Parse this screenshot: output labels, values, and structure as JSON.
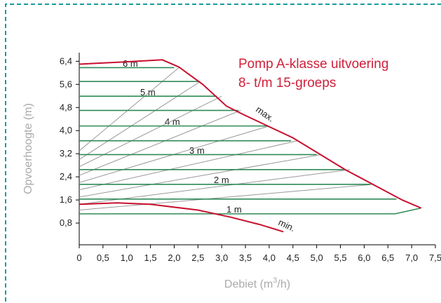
{
  "chart_data": {
    "type": "line",
    "title": [
      "Pomp A-klasse uitvoering",
      "8- t/m 15-groeps"
    ],
    "x_label": [
      "Debiet (m",
      "3",
      "/h)"
    ],
    "y_label": "Opvoerhoogte (m)",
    "xlim": [
      0,
      7.5
    ],
    "ylim": [
      0,
      6.7
    ],
    "xticks": [
      0,
      {
        "value": 0.5,
        "label": "0,5"
      },
      {
        "value": 1,
        "label": "1,0"
      },
      {
        "value": 1.5,
        "label": "1,5"
      },
      {
        "value": 2,
        "label": "2,0"
      },
      {
        "value": 2.5,
        "label": "2,5"
      },
      {
        "value": 3,
        "label": "3,0"
      },
      {
        "value": 3.5,
        "label": "3,5"
      },
      {
        "value": 4,
        "label": "4,0"
      },
      {
        "value": 4.5,
        "label": "4,5"
      },
      {
        "value": 5,
        "label": "5,0"
      },
      {
        "value": 5.5,
        "label": "5,5"
      },
      {
        "value": 6,
        "label": "6,0"
      },
      {
        "value": 6.5,
        "label": "6,5"
      },
      {
        "value": 7,
        "label": "7,0"
      },
      {
        "value": 7.5,
        "label": "7,5"
      }
    ],
    "yticks": [
      {
        "value": 0.8,
        "label": "0,8"
      },
      {
        "value": 1.6,
        "label": "1,6"
      },
      {
        "value": 2.4,
        "label": "2,4"
      },
      {
        "value": 3.2,
        "label": "3,2"
      },
      {
        "value": 4,
        "label": "4,0"
      },
      {
        "value": 4.8,
        "label": "4,8"
      },
      {
        "value": 5.6,
        "label": "5,6"
      },
      {
        "value": 6.4,
        "label": "6,4"
      }
    ],
    "curves": [
      {
        "name": "max.",
        "color": "#c8102e",
        "x": [
          0,
          1.0,
          1.75,
          2.1,
          2.6,
          3.1,
          3.4,
          4.5,
          5.6,
          6.8,
          7.2
        ],
        "values": [
          6.3,
          6.38,
          6.45,
          6.2,
          5.6,
          4.85,
          4.6,
          3.75,
          2.65,
          1.6,
          1.32
        ]
      },
      {
        "name": "min.",
        "color": "#c8102e",
        "x": [
          0,
          0.8,
          1.5,
          2.5,
          3.2,
          3.8,
          4.3
        ],
        "values": [
          1.45,
          1.5,
          1.45,
          1.25,
          1.0,
          0.75,
          0.5
        ]
      }
    ],
    "speed_lines": {
      "color": "#999999",
      "lines": [
        {
          "x": [
            0,
            2.1
          ],
          "values": [
            3.3,
            6.18
          ]
        },
        {
          "x": [
            0,
            2.55
          ],
          "values": [
            3.0,
            5.7
          ]
        },
        {
          "x": [
            0,
            3.0
          ],
          "values": [
            2.75,
            5.19
          ]
        },
        {
          "x": [
            0,
            3.4
          ],
          "values": [
            2.45,
            4.7
          ]
        },
        {
          "x": [
            0,
            4.0
          ],
          "values": [
            2.2,
            4.16
          ]
        },
        {
          "x": [
            0,
            4.6
          ],
          "values": [
            1.95,
            3.65
          ]
        },
        {
          "x": [
            0,
            5.1
          ],
          "values": [
            1.7,
            3.17
          ]
        },
        {
          "x": [
            0,
            5.7
          ],
          "values": [
            1.45,
            2.65
          ]
        },
        {
          "x": [
            0,
            6.2
          ],
          "values": [
            1.25,
            2.14
          ]
        }
      ]
    },
    "head_lines": {
      "color": "#2e8b57",
      "lines": [
        {
          "x": [
            0,
            2.0
          ],
          "values": [
            6.18,
            6.18
          ]
        },
        {
          "x": [
            0,
            2.54
          ],
          "values": [
            5.7,
            5.7
          ]
        },
        {
          "x": [
            0,
            2.9
          ],
          "values": [
            5.19,
            5.19
          ]
        },
        {
          "x": [
            0,
            3.35
          ],
          "values": [
            4.7,
            4.7
          ]
        },
        {
          "x": [
            0,
            3.97
          ],
          "values": [
            4.16,
            4.16
          ]
        },
        {
          "x": [
            0,
            4.46
          ],
          "values": [
            3.65,
            3.65
          ]
        },
        {
          "x": [
            0,
            5.0
          ],
          "values": [
            3.17,
            3.17
          ]
        },
        {
          "x": [
            0,
            5.57
          ],
          "values": [
            2.65,
            2.65
          ]
        },
        {
          "x": [
            0,
            6.13
          ],
          "values": [
            2.14,
            2.14
          ]
        },
        {
          "x": [
            0,
            6.68
          ],
          "values": [
            1.63,
            1.63
          ]
        },
        {
          "x": [
            0,
            6.65,
            7.2
          ],
          "values": [
            1.12,
            1.12,
            1.32
          ]
        }
      ]
    },
    "annotations": [
      "6 m",
      "5 m",
      "4 m",
      "3 m",
      "2 m",
      "1 m"
    ]
  }
}
